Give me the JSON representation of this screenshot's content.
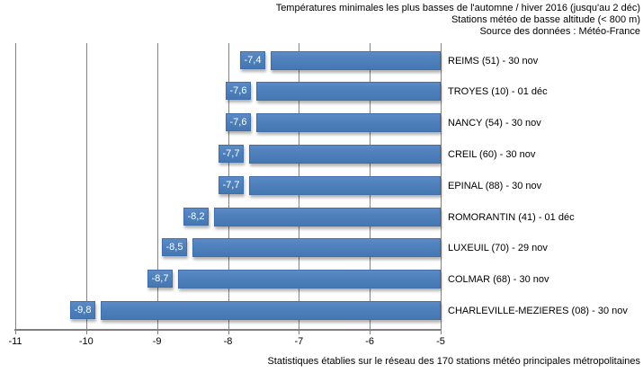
{
  "title": {
    "line1": "Températures minimales les plus basses de l'automne / hiver 2016 (jusqu'au 2 déc)",
    "line2": "Stations météo de basse altitude (< 800 m)",
    "line3": "Source des données : Météo-France"
  },
  "footer": "Statistiques établies sur le réseau des 170 stations météo principales métropolitaines",
  "chart_data": {
    "type": "bar",
    "orientation": "horizontal",
    "title": "Températures minimales les plus basses de l'automne / hiver 2016 (jusqu'au 2 déc)",
    "subtitle": "Stations météo de basse altitude (< 800 m)",
    "source": "Source des données : Météo-France",
    "categories": [
      "REIMS (51) - 30 nov",
      "TROYES (10) - 01 déc",
      "NANCY (54) - 30 nov",
      "CREIL (60) - 30 nov",
      "EPINAL (88) - 30 nov",
      "ROMORANTIN (41) - 01 déc",
      "LUXEUIL (70) - 29 nov",
      "COLMAR (68) - 30 nov",
      "CHARLEVILLE-MEZIERES (08) - 30 nov"
    ],
    "values": [
      -7.4,
      -7.6,
      -7.6,
      -7.7,
      -7.7,
      -8.2,
      -8.5,
      -8.7,
      -9.8
    ],
    "value_labels": [
      "-7,4",
      "-7,6",
      "-7,6",
      "-7,7",
      "-7,7",
      "-8,2",
      "-8,5",
      "-8,7",
      "-9,8"
    ],
    "xlim": [
      -11,
      -5
    ],
    "xticks": [
      -11,
      -10,
      -9,
      -8,
      -7,
      -6,
      -5
    ],
    "xtick_labels": [
      "-11",
      "-10",
      "-9",
      "-8",
      "-7",
      "-6",
      "-5"
    ],
    "grid": true,
    "legend": "none",
    "bar_color": "#4E80BC",
    "bar_border_color": "#406FA9",
    "gridline_color": "#848484",
    "axis_color": "#7F7F7F",
    "value_label_text_color": "#FFFFFF"
  }
}
